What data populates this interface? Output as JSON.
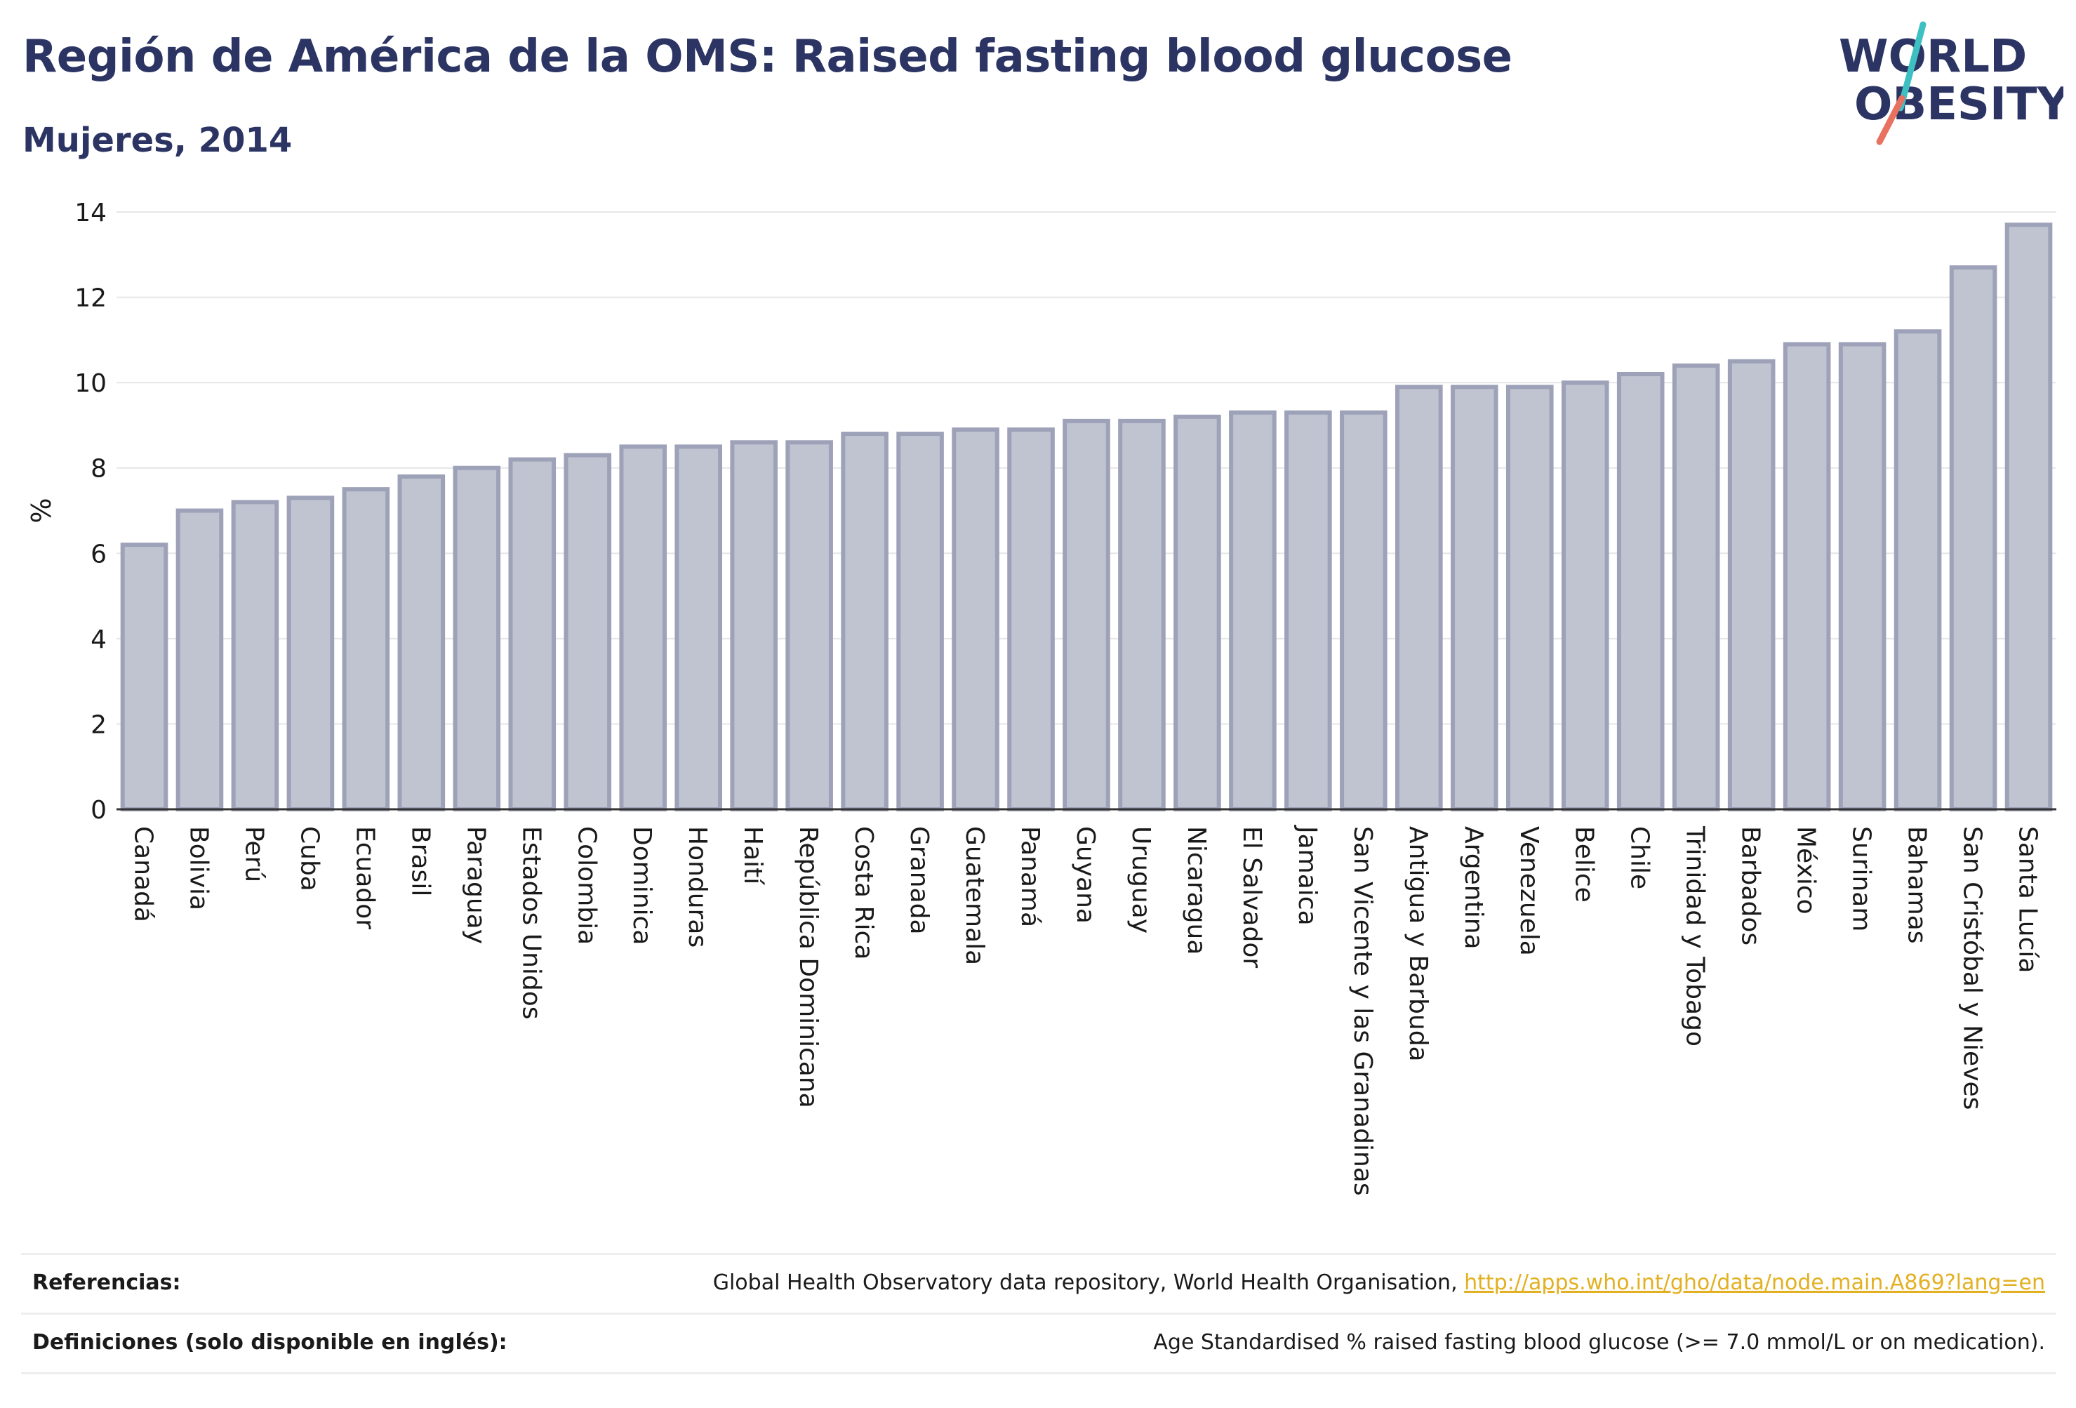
{
  "header": {
    "title": "Región de América de la OMS: Raised fasting blood glucose",
    "subtitle": "Mujeres, 2014"
  },
  "logo": {
    "line1": "WORLD",
    "line2": "OBESITY",
    "colors": {
      "text": "#2b3463",
      "slash_teal": "#3ec0c3",
      "slash_coral": "#e8715f"
    }
  },
  "chart_data": {
    "type": "bar",
    "title": "",
    "xlabel": "",
    "ylabel": "%",
    "ylim": [
      0,
      14
    ],
    "yticks": [
      0,
      2,
      4,
      6,
      8,
      10,
      12,
      14
    ],
    "grid": true,
    "categories": [
      "Canadá",
      "Bolivia",
      "Perú",
      "Cuba",
      "Ecuador",
      "Brasil",
      "Paraguay",
      "Estados Unidos",
      "Colombia",
      "Dominica",
      "Honduras",
      "Haití",
      "República Dominicana",
      "Costa Rica",
      "Granada",
      "Guatemala",
      "Panamá",
      "Guyana",
      "Uruguay",
      "Nicaragua",
      "El Salvador",
      "Jamaica",
      "San Vicente y las Granadinas",
      "Antigua y Barbuda",
      "Argentina",
      "Venezuela",
      "Belice",
      "Chile",
      "Trinidad y Tobago",
      "Barbados",
      "México",
      "Surinam",
      "Bahamas",
      "San Cristóbal y Nieves",
      "Santa Lucía"
    ],
    "values": [
      6.2,
      7.0,
      7.2,
      7.3,
      7.5,
      7.8,
      8.0,
      8.2,
      8.3,
      8.5,
      8.5,
      8.6,
      8.6,
      8.8,
      8.8,
      8.9,
      8.9,
      9.1,
      9.1,
      9.2,
      9.3,
      9.3,
      9.3,
      9.9,
      9.9,
      9.9,
      10.0,
      10.2,
      10.4,
      10.5,
      10.9,
      10.9,
      11.2,
      12.7,
      13.7
    ],
    "colors": {
      "bar_fill": "#c0c3d0",
      "bar_stroke": "#9ea2b8",
      "grid": "#e6e6e6",
      "axis": "#333333"
    }
  },
  "footer": {
    "references_label": "Referencias:",
    "references_text": "Global Health Observatory data repository, World Health Organisation, ",
    "references_link": "http://apps.who.int/gho/data/node.main.A869?lang=en",
    "definitions_label": "Definiciones (solo disponible en inglés):",
    "definitions_text": "Age Standardised % raised fasting blood glucose (>= 7.0 mmol/L or on medication).",
    "link_color": "#e3b021"
  }
}
